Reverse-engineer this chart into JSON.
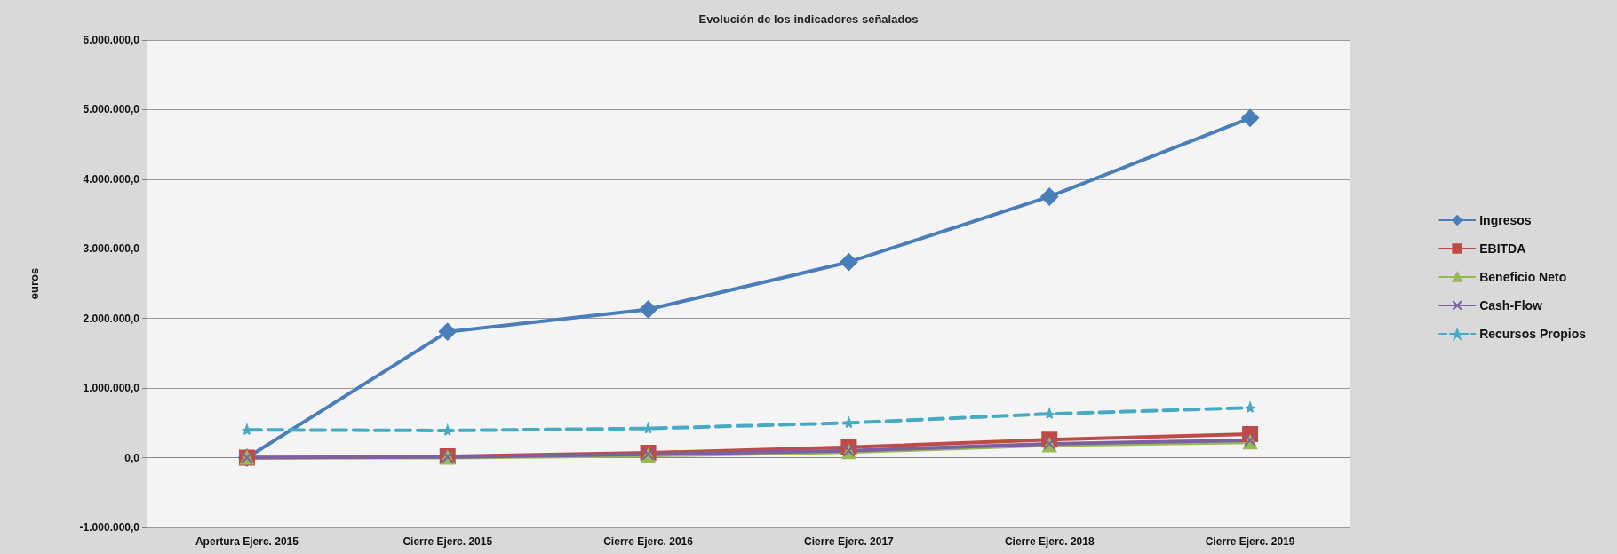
{
  "chart_data": {
    "type": "line",
    "title": "Evolución de los indicadores señalados",
    "ylabel": "euros",
    "categories": [
      "Apertura Ejerc. 2015",
      "Cierre Ejerc. 2015",
      "Cierre Ejerc. 2016",
      "Cierre Ejerc. 2017",
      "Cierre Ejerc. 2018",
      "Cierre Ejerc. 2019"
    ],
    "series": [
      {
        "name": "Ingresos",
        "color": "#4a7ebb",
        "marker": "diamond",
        "values": [
          0,
          1810000,
          2130000,
          2810000,
          3750000,
          4880000
        ]
      },
      {
        "name": "EBITDA",
        "color": "#be4b48",
        "marker": "square",
        "values": [
          0,
          20000,
          70000,
          150000,
          260000,
          340000
        ]
      },
      {
        "name": "Beneficio Neto",
        "color": "#98b954",
        "marker": "triangle",
        "values": [
          0,
          0,
          30000,
          80000,
          180000,
          220000
        ]
      },
      {
        "name": "Cash-Flow",
        "color": "#7d60a0",
        "marker": "cross",
        "values": [
          0,
          10000,
          50000,
          100000,
          200000,
          250000
        ]
      },
      {
        "name": "Recursos Propios",
        "color": "#46aac5",
        "marker": "star",
        "line_style": "dashed",
        "values": [
          400000,
          390000,
          420000,
          500000,
          630000,
          720000
        ]
      }
    ],
    "ylim": [
      -1000000,
      6000000
    ],
    "yticks": [
      {
        "value": -1000000,
        "label": "-1.000.000,0"
      },
      {
        "value": 0,
        "label": "0,0"
      },
      {
        "value": 1000000,
        "label": "1.000.000,0"
      },
      {
        "value": 2000000,
        "label": "2.000.000,0"
      },
      {
        "value": 3000000,
        "label": "3.000.000,0"
      },
      {
        "value": 4000000,
        "label": "4.000.000,0"
      },
      {
        "value": 5000000,
        "label": "5.000.000,0"
      },
      {
        "value": 6000000,
        "label": "6.000.000,0"
      }
    ],
    "grid": "y",
    "legend": "right"
  }
}
